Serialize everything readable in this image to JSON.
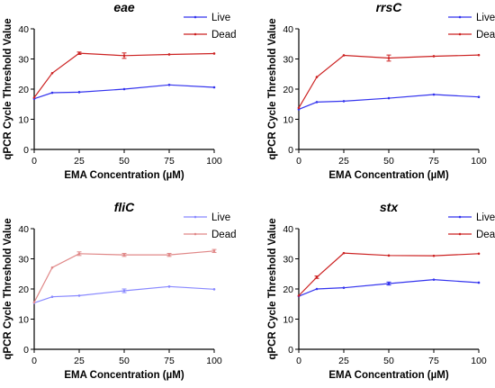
{
  "chart_data": [
    {
      "type": "line",
      "title": "eae",
      "xlabel": "EMA Concentration (µM)",
      "ylabel": "qPCR Cycle Threshold Value",
      "x": [
        0,
        10,
        25,
        50,
        75,
        100
      ],
      "xticks": [
        "0",
        "25",
        "50",
        "75",
        "100"
      ],
      "yticks": [
        "0",
        "10",
        "20",
        "30",
        "40"
      ],
      "xlim": [
        0,
        100
      ],
      "ylim": [
        0,
        40
      ],
      "legend_position": "top-right",
      "grid": false,
      "series": [
        {
          "name": "Live",
          "color": "#3333ee",
          "values": [
            16.8,
            18.8,
            19.0,
            20.0,
            21.4,
            20.6
          ],
          "errors": [
            0.2,
            0.2,
            0.2,
            0.3,
            0.2,
            0.2
          ]
        },
        {
          "name": "Dead",
          "color": "#cc2222",
          "values": [
            17.2,
            25.3,
            31.9,
            31.1,
            31.5,
            31.8
          ],
          "errors": [
            0.2,
            0.2,
            0.4,
            0.9,
            0.3,
            0.2
          ]
        }
      ]
    },
    {
      "type": "line",
      "title": "rrsC",
      "xlabel": "EMA Concentration (µM)",
      "ylabel": "qPCR Cycle Threshold Value",
      "x": [
        0,
        10,
        25,
        50,
        75,
        100
      ],
      "xticks": [
        "0",
        "25",
        "50",
        "75",
        "100"
      ],
      "yticks": [
        "0",
        "10",
        "20",
        "30",
        "40"
      ],
      "xlim": [
        0,
        100
      ],
      "ylim": [
        0,
        40
      ],
      "legend_position": "top-right",
      "grid": false,
      "series": [
        {
          "name": "Live",
          "color": "#3333ee",
          "values": [
            13.3,
            15.7,
            16.0,
            17.0,
            18.2,
            17.4
          ],
          "errors": [
            0.2,
            0.2,
            0.2,
            0.2,
            0.2,
            0.2
          ]
        },
        {
          "name": "Dead",
          "color": "#cc2222",
          "values": [
            13.8,
            24.0,
            31.2,
            30.3,
            30.9,
            31.3
          ],
          "errors": [
            0.2,
            0.2,
            0.3,
            1.0,
            0.3,
            0.2
          ]
        }
      ]
    },
    {
      "type": "line",
      "title": "fliC",
      "xlabel": "EMA Concentration (µM)",
      "ylabel": "qPCR Cycle Threshold Value",
      "x": [
        0,
        10,
        25,
        50,
        75,
        100
      ],
      "xticks": [
        "0",
        "25",
        "50",
        "75",
        "100"
      ],
      "yticks": [
        "0",
        "10",
        "20",
        "30",
        "40"
      ],
      "xlim": [
        0,
        100
      ],
      "ylim": [
        0,
        40
      ],
      "legend_position": "top-right",
      "grid": false,
      "series": [
        {
          "name": "Live",
          "color": "#8888ff",
          "values": [
            15.4,
            17.4,
            17.8,
            19.4,
            20.8,
            19.9
          ],
          "errors": [
            0.2,
            0.2,
            0.2,
            0.6,
            0.2,
            0.2
          ]
        },
        {
          "name": "Dead",
          "color": "#e08888",
          "values": [
            15.6,
            27.1,
            31.7,
            31.3,
            31.3,
            32.6
          ],
          "errors": [
            0.2,
            0.2,
            0.6,
            0.5,
            0.5,
            0.5
          ]
        }
      ]
    },
    {
      "type": "line",
      "title": "stx",
      "xlabel": "EMA Concentration (µM)",
      "ylabel": "qPCR Cycle Threshold Value",
      "x": [
        0,
        10,
        25,
        50,
        75,
        100
      ],
      "xticks": [
        "0",
        "25",
        "50",
        "75",
        "100"
      ],
      "yticks": [
        "0",
        "10",
        "20",
        "30",
        "40"
      ],
      "xlim": [
        0,
        100
      ],
      "ylim": [
        0,
        40
      ],
      "legend_position": "top-right",
      "grid": false,
      "series": [
        {
          "name": "Live",
          "color": "#3333ee",
          "values": [
            17.6,
            20.0,
            20.4,
            21.8,
            23.1,
            22.1
          ],
          "errors": [
            0.2,
            0.2,
            0.2,
            0.5,
            0.2,
            0.2
          ]
        },
        {
          "name": "Dead",
          "color": "#cc2222",
          "values": [
            17.8,
            23.9,
            31.9,
            31.1,
            31.0,
            31.7
          ],
          "errors": [
            0.2,
            0.4,
            0.2,
            0.3,
            0.3,
            0.2
          ]
        }
      ]
    }
  ]
}
